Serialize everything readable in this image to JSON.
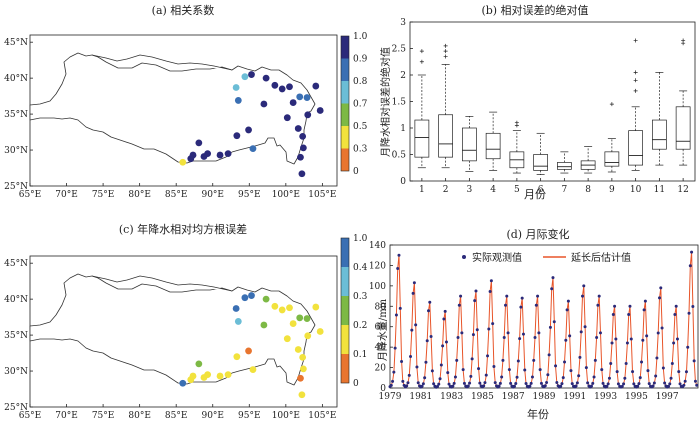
{
  "chart_data": [
    {
      "id": "a",
      "type": "scatter",
      "title": "(a) 相关系数",
      "xlim": [
        65,
        107
      ],
      "ylim": [
        25,
        46
      ],
      "x_ticks": [
        "65°E",
        "70°E",
        "75°E",
        "80°E",
        "85°E",
        "90°E",
        "95°E",
        "100°E",
        "105°E"
      ],
      "y_ticks": [
        "25°N",
        "30°N",
        "35°N",
        "40°N",
        "45°N"
      ],
      "colorbar": {
        "labels": [
          "0",
          "0.3",
          "0.5",
          "0.7",
          "0.8",
          "0.9",
          "1.0"
        ],
        "colors": [
          "#e8752f",
          "#f2e23d",
          "#7db945",
          "#6bbdd6",
          "#3a6fb3",
          "#2b2a7a"
        ]
      },
      "points": [
        {
          "lon": 85.9,
          "lat": 28.3,
          "v": 0.45
        },
        {
          "lon": 87.0,
          "lat": 28.8,
          "v": 0.95
        },
        {
          "lon": 87.3,
          "lat": 29.3,
          "v": 0.95
        },
        {
          "lon": 88.1,
          "lat": 31.0,
          "v": 0.95
        },
        {
          "lon": 88.8,
          "lat": 29.1,
          "v": 0.95
        },
        {
          "lon": 89.3,
          "lat": 29.5,
          "v": 0.95
        },
        {
          "lon": 91.0,
          "lat": 29.3,
          "v": 0.95
        },
        {
          "lon": 92.1,
          "lat": 29.5,
          "v": 0.95
        },
        {
          "lon": 93.3,
          "lat": 32.0,
          "v": 0.95
        },
        {
          "lon": 93.2,
          "lat": 38.7,
          "v": 0.75
        },
        {
          "lon": 93.5,
          "lat": 36.9,
          "v": 0.85
        },
        {
          "lon": 94.4,
          "lat": 40.2,
          "v": 0.75
        },
        {
          "lon": 95.3,
          "lat": 40.5,
          "v": 0.95
        },
        {
          "lon": 94.9,
          "lat": 32.8,
          "v": 0.95
        },
        {
          "lon": 95.5,
          "lat": 30.2,
          "v": 0.85
        },
        {
          "lon": 97.3,
          "lat": 40.0,
          "v": 0.95
        },
        {
          "lon": 97.0,
          "lat": 36.4,
          "v": 0.95
        },
        {
          "lon": 98.5,
          "lat": 39.0,
          "v": 0.95
        },
        {
          "lon": 99.5,
          "lat": 38.5,
          "v": 0.95
        },
        {
          "lon": 100.5,
          "lat": 38.8,
          "v": 0.95
        },
        {
          "lon": 100.2,
          "lat": 34.5,
          "v": 0.95
        },
        {
          "lon": 101.0,
          "lat": 36.6,
          "v": 0.95
        },
        {
          "lon": 101.7,
          "lat": 33.0,
          "v": 0.95
        },
        {
          "lon": 101.9,
          "lat": 37.4,
          "v": 0.85
        },
        {
          "lon": 102.3,
          "lat": 31.9,
          "v": 0.95
        },
        {
          "lon": 102.0,
          "lat": 29.0,
          "v": 0.95
        },
        {
          "lon": 102.4,
          "lat": 30.3,
          "v": 0.95
        },
        {
          "lon": 102.2,
          "lat": 26.7,
          "v": 0.95
        },
        {
          "lon": 102.9,
          "lat": 37.3,
          "v": 0.85
        },
        {
          "lon": 103.0,
          "lat": 34.9,
          "v": 0.95
        },
        {
          "lon": 104.1,
          "lat": 38.9,
          "v": 0.95
        },
        {
          "lon": 104.7,
          "lat": 35.5,
          "v": 0.95
        }
      ]
    },
    {
      "id": "b",
      "type": "box",
      "title": "(b) 相对误差的绝对值",
      "xlabel": "月份",
      "ylabel": "月降水相对误差的绝对值",
      "ylim": [
        0,
        3
      ],
      "y_ticks": [
        "0",
        "0.5",
        "1",
        "1.5",
        "2",
        "2.5",
        "3"
      ],
      "categories": [
        "1",
        "2",
        "3",
        "4",
        "5",
        "6",
        "7",
        "8",
        "9",
        "10",
        "11",
        "12"
      ],
      "boxes": [
        {
          "min": 0.25,
          "q1": 0.45,
          "med": 0.82,
          "q3": 1.15,
          "max": 2.0,
          "outliers": [
            2.25,
            2.45
          ]
        },
        {
          "min": 0.25,
          "q1": 0.45,
          "med": 0.7,
          "q3": 1.25,
          "max": 2.2,
          "outliers": [
            2.35,
            2.45,
            2.55
          ]
        },
        {
          "min": 0.18,
          "q1": 0.38,
          "med": 0.58,
          "q3": 1.0,
          "max": 1.22,
          "outliers": []
        },
        {
          "min": 0.2,
          "q1": 0.42,
          "med": 0.6,
          "q3": 0.9,
          "max": 1.3,
          "outliers": []
        },
        {
          "min": 0.15,
          "q1": 0.25,
          "med": 0.4,
          "q3": 0.55,
          "max": 0.95,
          "outliers": [
            1.05,
            1.1
          ]
        },
        {
          "min": 0.12,
          "q1": 0.2,
          "med": 0.28,
          "q3": 0.5,
          "max": 0.9,
          "outliers": []
        },
        {
          "min": 0.15,
          "q1": 0.22,
          "med": 0.27,
          "q3": 0.35,
          "max": 0.55,
          "outliers": []
        },
        {
          "min": 0.15,
          "q1": 0.22,
          "med": 0.3,
          "q3": 0.38,
          "max": 0.65,
          "outliers": []
        },
        {
          "min": 0.17,
          "q1": 0.28,
          "med": 0.35,
          "q3": 0.55,
          "max": 0.8,
          "outliers": [
            1.45
          ]
        },
        {
          "min": 0.2,
          "q1": 0.3,
          "med": 0.48,
          "q3": 0.95,
          "max": 1.4,
          "outliers": [
            1.7,
            1.9,
            2.05,
            2.65
          ]
        },
        {
          "min": 0.3,
          "q1": 0.6,
          "med": 0.78,
          "q3": 1.15,
          "max": 2.05,
          "outliers": []
        },
        {
          "min": 0.3,
          "q1": 0.6,
          "med": 0.75,
          "q3": 1.4,
          "max": 1.7,
          "outliers": [
            2.6,
            2.65
          ]
        }
      ]
    },
    {
      "id": "c",
      "type": "scatter",
      "title": "(c) 年降水相对均方根误差",
      "xlim": [
        65,
        107
      ],
      "ylim": [
        25,
        46
      ],
      "x_ticks": [
        "65°E",
        "70°E",
        "75°E",
        "80°E",
        "85°E",
        "90°E",
        "95°E",
        "100°E",
        "105°E"
      ],
      "y_ticks": [
        "25°N",
        "30°N",
        "35°N",
        "40°N",
        "45°N"
      ],
      "colorbar": {
        "labels": [
          "0",
          "0.1",
          "0.2",
          "0.3",
          "0.4",
          "1.0"
        ],
        "colors": [
          "#e8752f",
          "#f2e23d",
          "#7db945",
          "#6bbdd6",
          "#3a6fb3"
        ]
      },
      "points": [
        {
          "lon": 85.9,
          "lat": 28.3,
          "v": 0.5
        },
        {
          "lon": 87.0,
          "lat": 28.8,
          "v": 0.15
        },
        {
          "lon": 87.3,
          "lat": 29.3,
          "v": 0.15
        },
        {
          "lon": 88.1,
          "lat": 31.0,
          "v": 0.25
        },
        {
          "lon": 88.8,
          "lat": 29.1,
          "v": 0.15
        },
        {
          "lon": 89.3,
          "lat": 29.5,
          "v": 0.15
        },
        {
          "lon": 91.0,
          "lat": 29.3,
          "v": 0.15
        },
        {
          "lon": 92.1,
          "lat": 29.5,
          "v": 0.15
        },
        {
          "lon": 93.3,
          "lat": 32.0,
          "v": 0.15
        },
        {
          "lon": 93.2,
          "lat": 38.7,
          "v": 0.5
        },
        {
          "lon": 93.5,
          "lat": 36.9,
          "v": 0.35
        },
        {
          "lon": 94.4,
          "lat": 40.2,
          "v": 0.5
        },
        {
          "lon": 95.3,
          "lat": 40.5,
          "v": 0.5
        },
        {
          "lon": 94.9,
          "lat": 32.8,
          "v": 0.05
        },
        {
          "lon": 95.5,
          "lat": 30.2,
          "v": 0.15
        },
        {
          "lon": 97.3,
          "lat": 40.0,
          "v": 0.25
        },
        {
          "lon": 97.0,
          "lat": 36.4,
          "v": 0.25
        },
        {
          "lon": 98.5,
          "lat": 39.0,
          "v": 0.15
        },
        {
          "lon": 99.5,
          "lat": 38.5,
          "v": 0.15
        },
        {
          "lon": 100.5,
          "lat": 38.8,
          "v": 0.15
        },
        {
          "lon": 100.2,
          "lat": 34.5,
          "v": 0.15
        },
        {
          "lon": 101.0,
          "lat": 36.6,
          "v": 0.15
        },
        {
          "lon": 101.7,
          "lat": 33.0,
          "v": 0.15
        },
        {
          "lon": 101.9,
          "lat": 37.4,
          "v": 0.25
        },
        {
          "lon": 102.3,
          "lat": 31.9,
          "v": 0.15
        },
        {
          "lon": 102.0,
          "lat": 29.0,
          "v": 0.05
        },
        {
          "lon": 102.4,
          "lat": 30.3,
          "v": 0.15
        },
        {
          "lon": 102.2,
          "lat": 26.7,
          "v": 0.15
        },
        {
          "lon": 102.9,
          "lat": 37.3,
          "v": 0.25
        },
        {
          "lon": 103.0,
          "lat": 34.9,
          "v": 0.15
        },
        {
          "lon": 104.1,
          "lat": 38.9,
          "v": 0.15
        },
        {
          "lon": 104.7,
          "lat": 35.5,
          "v": 0.15
        }
      ]
    },
    {
      "id": "d",
      "type": "line",
      "title": "(d) 月际变化",
      "xlabel": "年份",
      "ylabel": "月降水量/mm",
      "ylim": [
        0,
        140
      ],
      "y_ticks": [
        "0",
        "20",
        "40",
        "60",
        "80",
        "100",
        "120",
        "140"
      ],
      "x_start_year": 1979,
      "x_end_year": 1999,
      "x_ticks": [
        "1979",
        "1981",
        "1983",
        "1985",
        "1987",
        "1989",
        "1991",
        "1993",
        "1995",
        "1997"
      ],
      "legend": [
        "实际观测值",
        "延长后估计值"
      ],
      "series_colors": {
        "observed": "#2b2a7a",
        "estimated": "#e8552a"
      },
      "annual_peaks": [
        130,
        103,
        84,
        75,
        90,
        95,
        105,
        90,
        88,
        90,
        108,
        85,
        100,
        90,
        80,
        80,
        85,
        98,
        80,
        133
      ],
      "monthly_shape": [
        0.01,
        0.02,
        0.05,
        0.12,
        0.3,
        0.55,
        0.9,
        1.0,
        0.6,
        0.2,
        0.05,
        0.02
      ]
    }
  ]
}
